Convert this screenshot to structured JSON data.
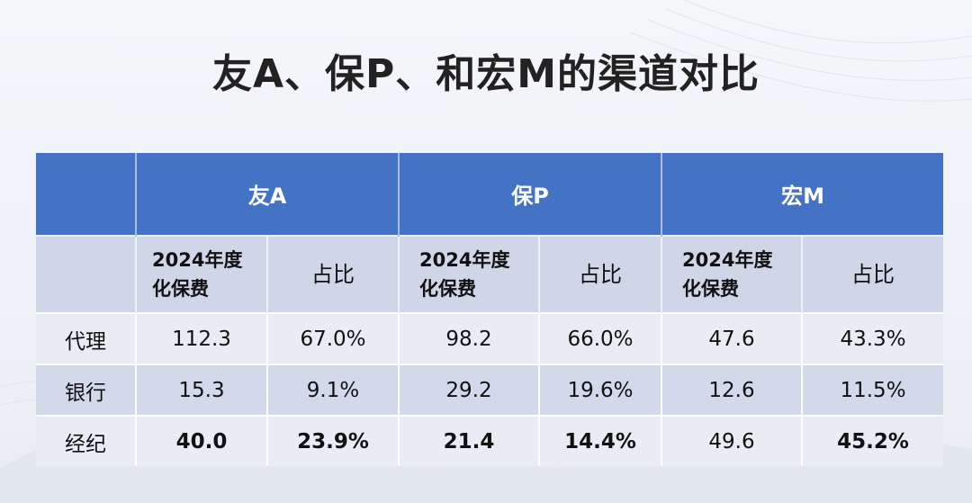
{
  "title": "友A、保P、和宏M的渠道对比",
  "chart_data": {
    "type": "table",
    "companies": [
      "友A",
      "保P",
      "宏M"
    ],
    "subheaders": {
      "premium": "2024年度化保费",
      "ratio": "占比"
    },
    "rows": [
      {
        "channel": "代理",
        "values": [
          "112.3",
          "67.0%",
          "98.2",
          "66.0%",
          "47.6",
          "43.3%"
        ],
        "highlight": [
          false,
          false,
          false,
          false,
          false,
          false
        ]
      },
      {
        "channel": "银行",
        "values": [
          "15.3",
          "9.1%",
          "29.2",
          "19.6%",
          "12.6",
          "11.5%"
        ],
        "highlight": [
          false,
          false,
          false,
          false,
          false,
          false
        ]
      },
      {
        "channel": "经纪",
        "values": [
          "40.0",
          "23.9%",
          "21.4",
          "14.4%",
          "49.6",
          "45.2%"
        ],
        "highlight": [
          true,
          true,
          true,
          true,
          false,
          true
        ]
      }
    ],
    "colors": {
      "header": "#4472c4",
      "highlight": "#c00000"
    }
  }
}
